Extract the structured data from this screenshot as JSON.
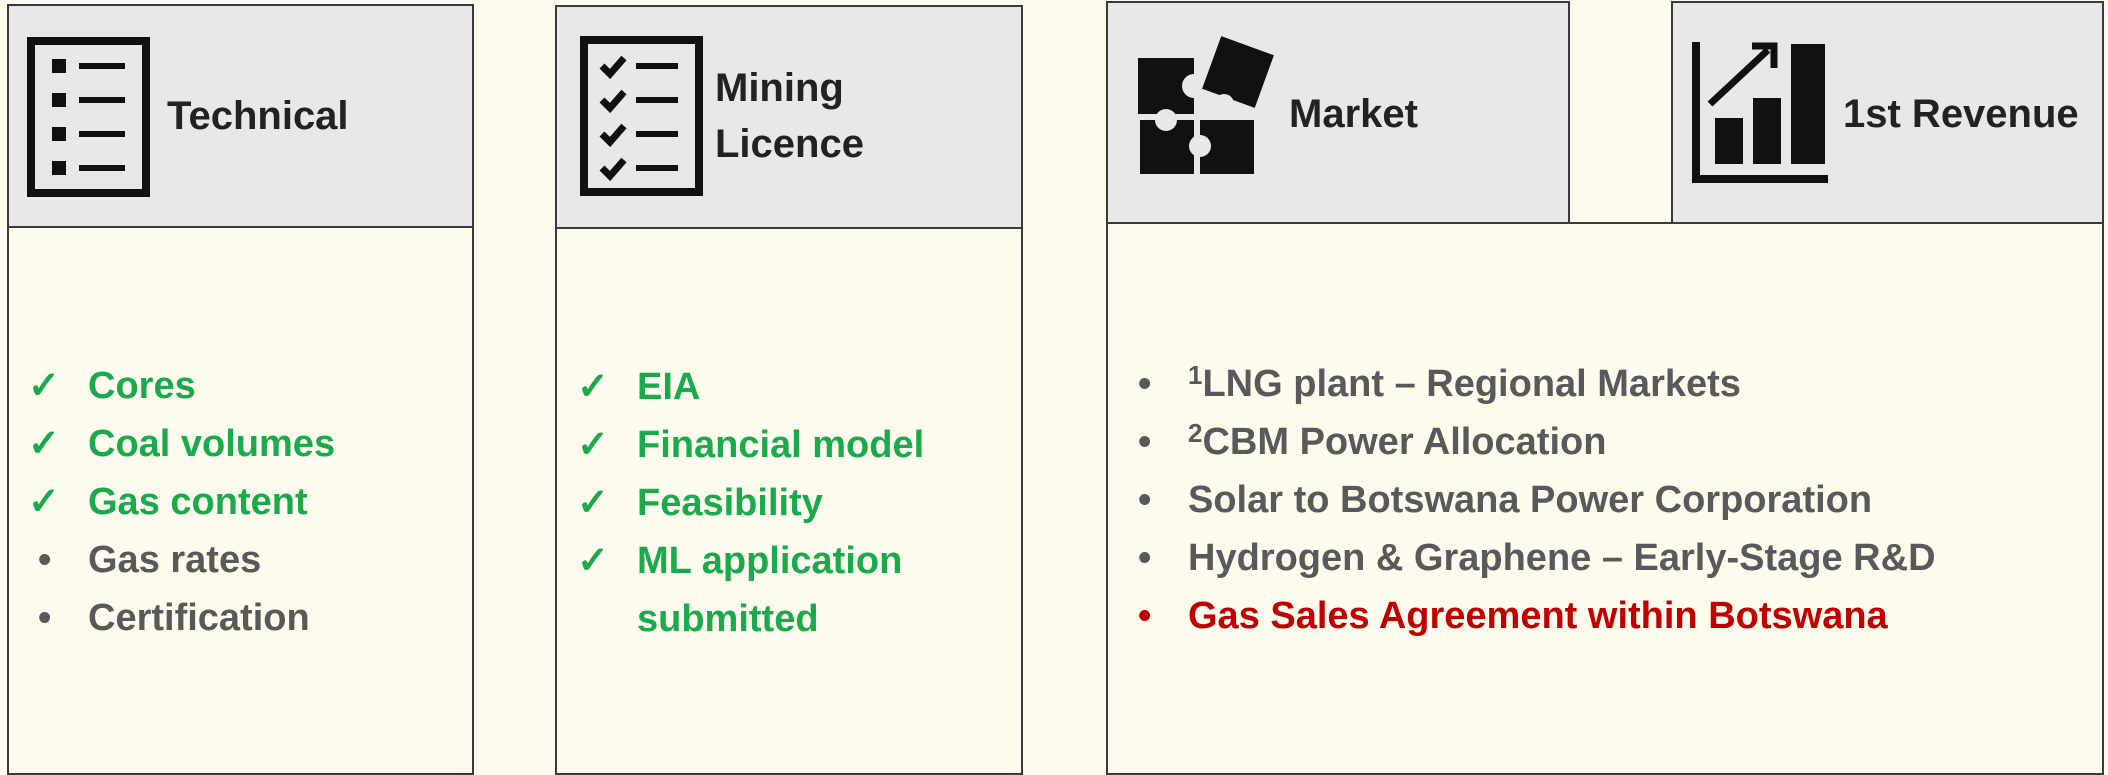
{
  "panels": [
    {
      "title": "Technical",
      "items": [
        {
          "marker": "✓",
          "text": "Cores",
          "color": "#1aaa4b"
        },
        {
          "marker": "✓",
          "text": "Coal volumes",
          "color": "#1aaa4b"
        },
        {
          "marker": "✓",
          "text": "Gas content",
          "color": "#1aaa4b"
        },
        {
          "marker": "•",
          "text": "Gas rates",
          "color": "#595959"
        },
        {
          "marker": "•",
          "text": "Certification",
          "color": "#595959"
        }
      ]
    },
    {
      "title": "Mining Licence",
      "items": [
        {
          "marker": "✓",
          "text": "EIA",
          "color": "#1aaa4b"
        },
        {
          "marker": "✓",
          "text": "Financial model",
          "color": "#1aaa4b"
        },
        {
          "marker": "✓",
          "text": "Feasibility",
          "color": "#1aaa4b"
        },
        {
          "marker": "✓",
          "text": "ML application submitted",
          "color": "#1aaa4b"
        }
      ]
    },
    {
      "title": "Market",
      "second_title": "1st Revenue",
      "items": [
        {
          "marker": "•",
          "sup": "1",
          "text": "LNG plant – Regional Markets",
          "color": "#595959"
        },
        {
          "marker": "•",
          "sup": "2",
          "text": "CBM Power Allocation",
          "color": "#595959"
        },
        {
          "marker": "•",
          "text": "Solar to Botswana Power Corporation",
          "color": "#595959"
        },
        {
          "marker": "•",
          "text": "Hydrogen & Graphene – Early-Stage R&D",
          "color": "#595959"
        },
        {
          "marker": "•",
          "text": "Gas Sales Agreement within Botswana",
          "color": "#c00000"
        }
      ]
    }
  ]
}
